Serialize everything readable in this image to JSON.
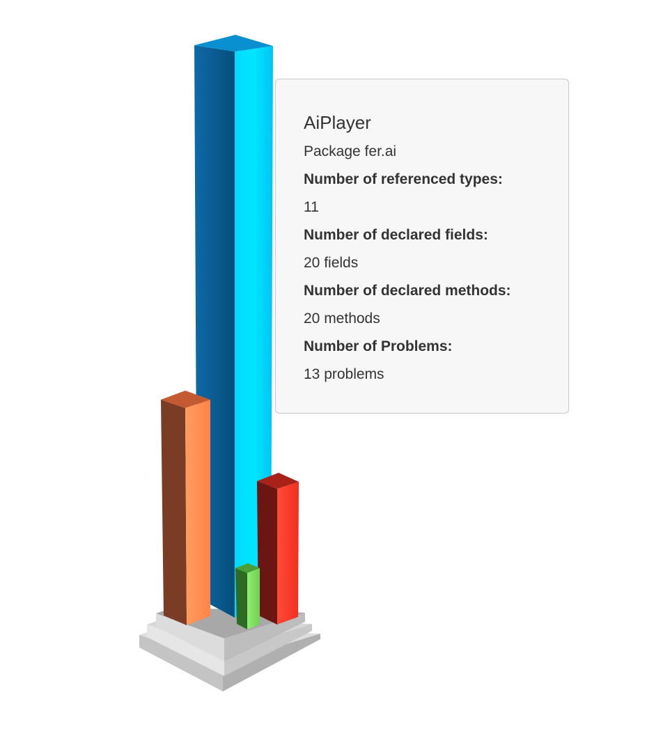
{
  "tooltip": {
    "title": "AiPlayer",
    "package": "Package fer.ai",
    "referenced_types_label": "Number of referenced types:",
    "referenced_types_value": "11",
    "declared_fields_label": "Number of declared fields:",
    "declared_fields_value": "20 fields",
    "declared_methods_label": "Number of declared methods:",
    "declared_methods_value": "20 methods",
    "problems_label": "Number of Problems:",
    "problems_value": "13 problems"
  },
  "colors": {
    "tall_bar": "#00c8ff",
    "tall_bar_shade": "#0a5a8a",
    "orange_bar": "#ff8c50",
    "orange_bar_shade": "#7a3a22",
    "red_bar": "#ff3a2a",
    "red_bar_shade": "#6a1410",
    "green_bar": "#80e060",
    "green_bar_shade": "#2f6a22",
    "pedestal": "#a8a8a8",
    "tooltip_bg": "#f7f7f7",
    "tooltip_border": "#c8c8c8"
  }
}
